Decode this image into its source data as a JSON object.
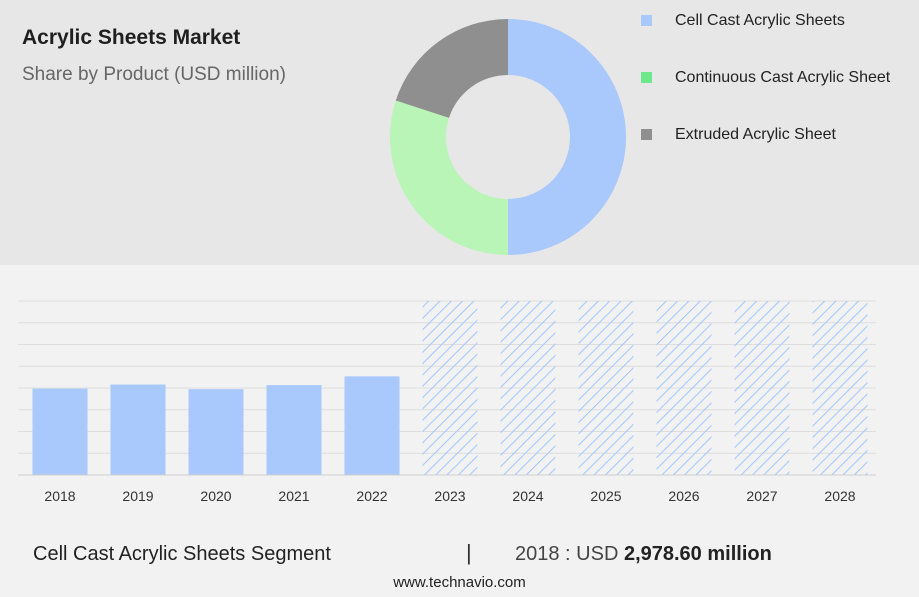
{
  "header": {
    "title": "Acrylic Sheets Market",
    "subtitle": "Share by Product (USD million)"
  },
  "colors": {
    "cell_cast": "#a9c8fb",
    "continuous_cast": "#b8f5b6",
    "extruded": "#8f8f8f",
    "legend_cell_cast": "#a9c8fb",
    "legend_continuous_cast": "#6ee88a",
    "legend_extruded": "#8f8f8f",
    "forecast_hatch": "#a9c8fb"
  },
  "chart_data": [
    {
      "type": "pie",
      "donut": true,
      "labels": [
        "Cell Cast Acrylic Sheets",
        "Continuous Cast Acrylic Sheet",
        "Extruded Acrylic Sheet"
      ],
      "values": [
        50,
        30,
        20
      ],
      "legend_position": "right"
    },
    {
      "type": "bar",
      "categories": [
        "2018",
        "2019",
        "2020",
        "2021",
        "2022",
        "2023",
        "2024",
        "2025",
        "2026",
        "2027",
        "2028"
      ],
      "values": [
        2978.6,
        3120,
        2960,
        3100,
        3400,
        null,
        null,
        null,
        null,
        null,
        null
      ],
      "forecast": [
        false,
        false,
        false,
        false,
        false,
        true,
        true,
        true,
        true,
        true,
        true
      ],
      "ylim": [
        0,
        6000
      ],
      "grid": true,
      "legend": false
    }
  ],
  "footer": {
    "segment": "Cell Cast Acrylic Sheets Segment",
    "separator": "|",
    "value_prefix": "2018 : USD",
    "value_bold": "2,978.60 million",
    "watermark": "www.technavio.com"
  }
}
